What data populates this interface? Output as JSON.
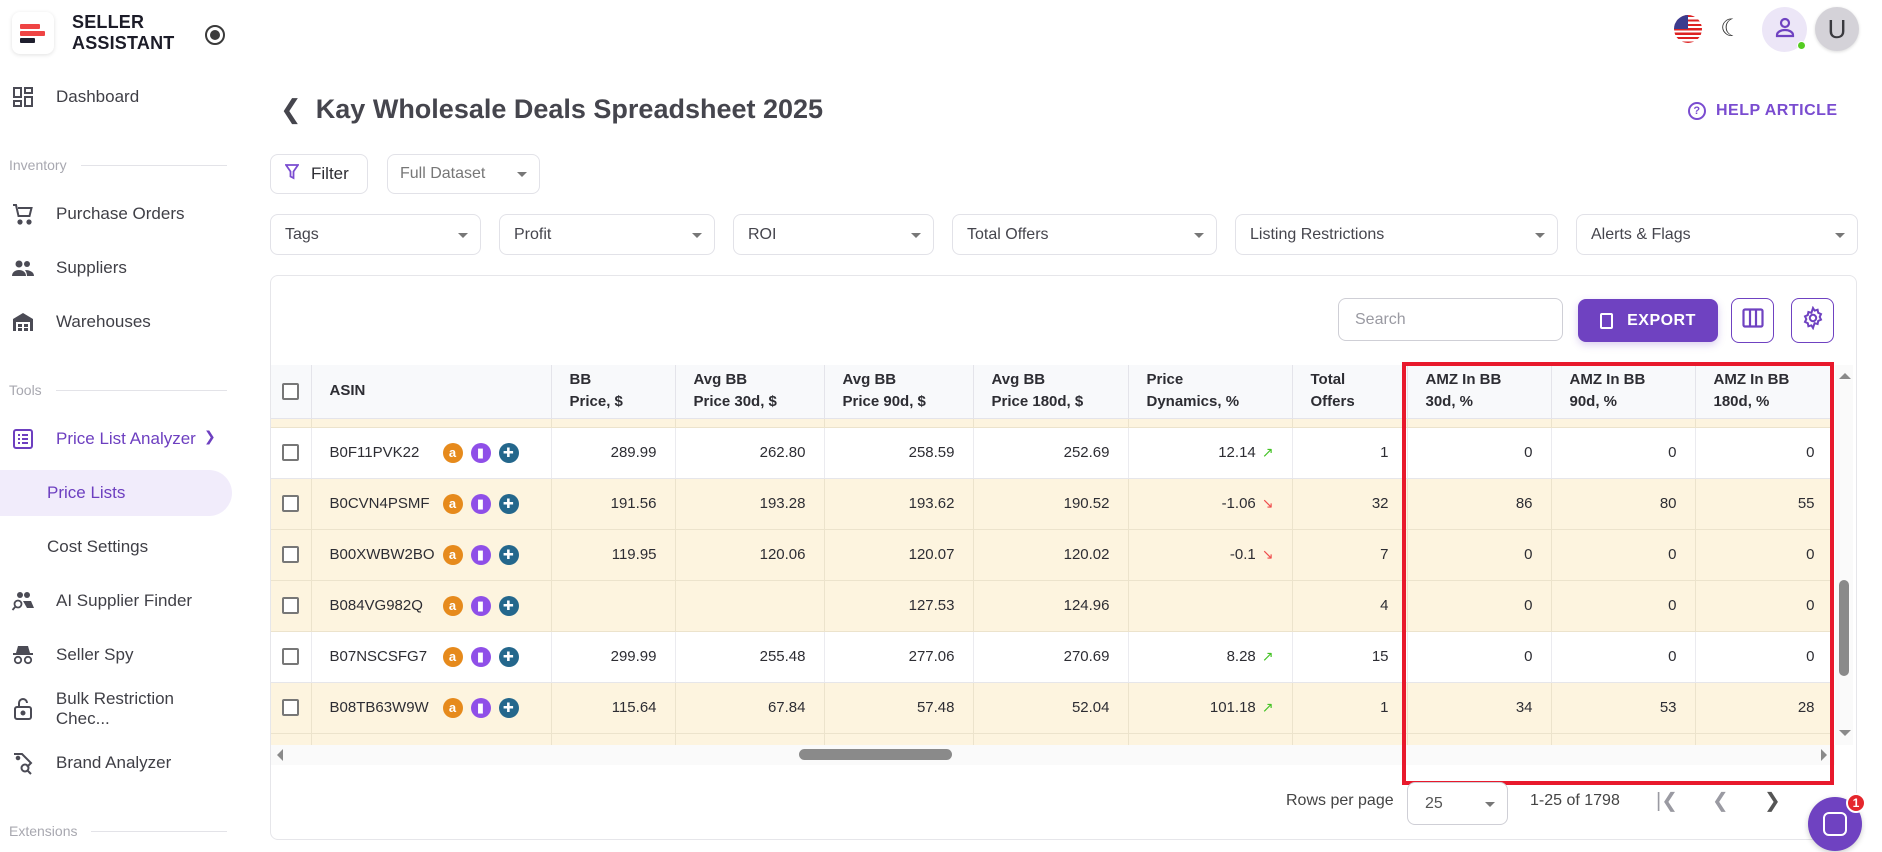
{
  "brand": {
    "name_line1": "SELLER",
    "name_line2": "ASSISTANT"
  },
  "sidebar": {
    "items": [
      {
        "label": "Dashboard",
        "icon": "dashboard-icon"
      },
      {
        "section": "Inventory"
      },
      {
        "label": "Purchase Orders",
        "icon": "cart-icon"
      },
      {
        "label": "Suppliers",
        "icon": "users-icon"
      },
      {
        "label": "Warehouses",
        "icon": "warehouse-icon"
      },
      {
        "section": "Tools"
      },
      {
        "label": "Price List Analyzer",
        "icon": "list-icon",
        "expanded": true
      },
      {
        "label": "Price Lists",
        "selected": true
      },
      {
        "label": "Cost Settings"
      },
      {
        "label": "AI Supplier Finder",
        "icon": "ai-users-search-icon"
      },
      {
        "label": "Seller Spy",
        "icon": "spy-icon"
      },
      {
        "label": "Bulk Restriction Chec...",
        "icon": "lock-icon"
      },
      {
        "label": "Brand Analyzer",
        "icon": "tag-search-icon"
      },
      {
        "section": "Extensions"
      }
    ]
  },
  "topbar": {
    "avatar_initial": "U",
    "locale_flag": "us-flag-icon",
    "theme_icon": "moon-stars-icon",
    "profile_icon": "user-icon",
    "status_color": "#55cc22"
  },
  "header": {
    "title": "Kay Wholesale Deals Spreadsheet 2025",
    "help_label": "HELP ARTICLE"
  },
  "filters": {
    "filter_label": "Filter",
    "dataset_value": "Full Dataset",
    "dropdowns": [
      "Tags",
      "Profit",
      "ROI",
      "Total Offers",
      "Listing Restrictions",
      "Alerts & Flags"
    ]
  },
  "toolbar": {
    "search_placeholder": "Search",
    "export_label": "EXPORT"
  },
  "table": {
    "columns": [
      {
        "line1": "ASIN",
        "line2": ""
      },
      {
        "line1": "BB",
        "line2": "Price, $"
      },
      {
        "line1": "Avg BB",
        "line2": "Price 30d, $"
      },
      {
        "line1": "Avg BB",
        "line2": "Price 90d, $"
      },
      {
        "line1": "Avg BB",
        "line2": "Price 180d, $"
      },
      {
        "line1": "Price",
        "line2": "Dynamics, %"
      },
      {
        "line1": "Total",
        "line2": "Offers"
      },
      {
        "line1": "AMZ In BB",
        "line2": "30d, %"
      },
      {
        "line1": "AMZ In BB",
        "line2": "90d, %"
      },
      {
        "line1": "AMZ In BB",
        "line2": "180d, %"
      }
    ],
    "rows": [
      {
        "asin": "B0F11PVK22",
        "bb": "289.99",
        "avg30": "262.80",
        "avg90": "258.59",
        "avg180": "252.69",
        "dyn": "12.14",
        "trend": "↗",
        "offers": "1",
        "amz30": "0",
        "amz90": "0",
        "amz180": "0",
        "highlight": false
      },
      {
        "asin": "B0CVN4PSMF",
        "bb": "191.56",
        "avg30": "193.28",
        "avg90": "193.62",
        "avg180": "190.52",
        "dyn": "-1.06",
        "trend": "↘",
        "offers": "32",
        "amz30": "86",
        "amz90": "80",
        "amz180": "55",
        "highlight": true
      },
      {
        "asin": "B00XWBW2BO",
        "bb": "119.95",
        "avg30": "120.06",
        "avg90": "120.07",
        "avg180": "120.02",
        "dyn": "-0.1",
        "trend": "↘",
        "offers": "7",
        "amz30": "0",
        "amz90": "0",
        "amz180": "0",
        "highlight": true
      },
      {
        "asin": "B084VG982Q",
        "bb": "",
        "avg30": "",
        "avg90": "127.53",
        "avg180": "124.96",
        "dyn": "",
        "trend": "",
        "offers": "4",
        "amz30": "0",
        "amz90": "0",
        "amz180": "0",
        "highlight": true
      },
      {
        "asin": "B07NSCSFG7",
        "bb": "299.99",
        "avg30": "255.48",
        "avg90": "277.06",
        "avg180": "270.69",
        "dyn": "8.28",
        "trend": "↗",
        "offers": "15",
        "amz30": "0",
        "amz90": "0",
        "amz180": "0",
        "highlight": false
      },
      {
        "asin": "B08TB63W9W",
        "bb": "115.64",
        "avg30": "67.84",
        "avg90": "57.48",
        "avg180": "52.04",
        "dyn": "101.18",
        "trend": "↗",
        "offers": "1",
        "amz30": "34",
        "amz90": "53",
        "amz180": "28",
        "highlight": true
      }
    ],
    "row_icons": [
      "amazon-icon",
      "chart-icon",
      "keepa-icon"
    ]
  },
  "pagination": {
    "rows_per_page_label": "Rows per page",
    "rows_per_page_value": "25",
    "range": "1-25 of 1798"
  },
  "chat": {
    "badge_count": "1"
  },
  "colors": {
    "accent": "#6f42c1",
    "highlight_row": "#fdf4df",
    "annotation_box": "#e8192c",
    "trend_up": "#44c226",
    "trend_down": "#ef4d4d"
  }
}
